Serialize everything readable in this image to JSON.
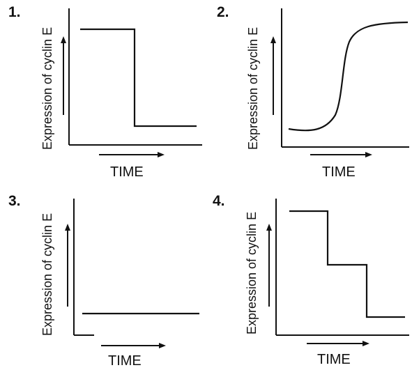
{
  "panels": [
    {
      "number": "1.",
      "ylabel": "Expression of cyclin E",
      "xlabel": "TIME",
      "curve": "high-then-drop"
    },
    {
      "number": "2.",
      "ylabel": "Expression of cyclin E",
      "xlabel": "TIME",
      "curve": "sigmoid-rise"
    },
    {
      "number": "3.",
      "ylabel": "Expression of cyclin E",
      "xlabel": "TIME",
      "curve": "constant-low"
    },
    {
      "number": "4.",
      "ylabel": "Expression of cyclin E",
      "xlabel": "TIME",
      "curve": "stepwise-decrease"
    }
  ],
  "colors": {
    "ink": "#111111",
    "background": "#ffffff"
  }
}
